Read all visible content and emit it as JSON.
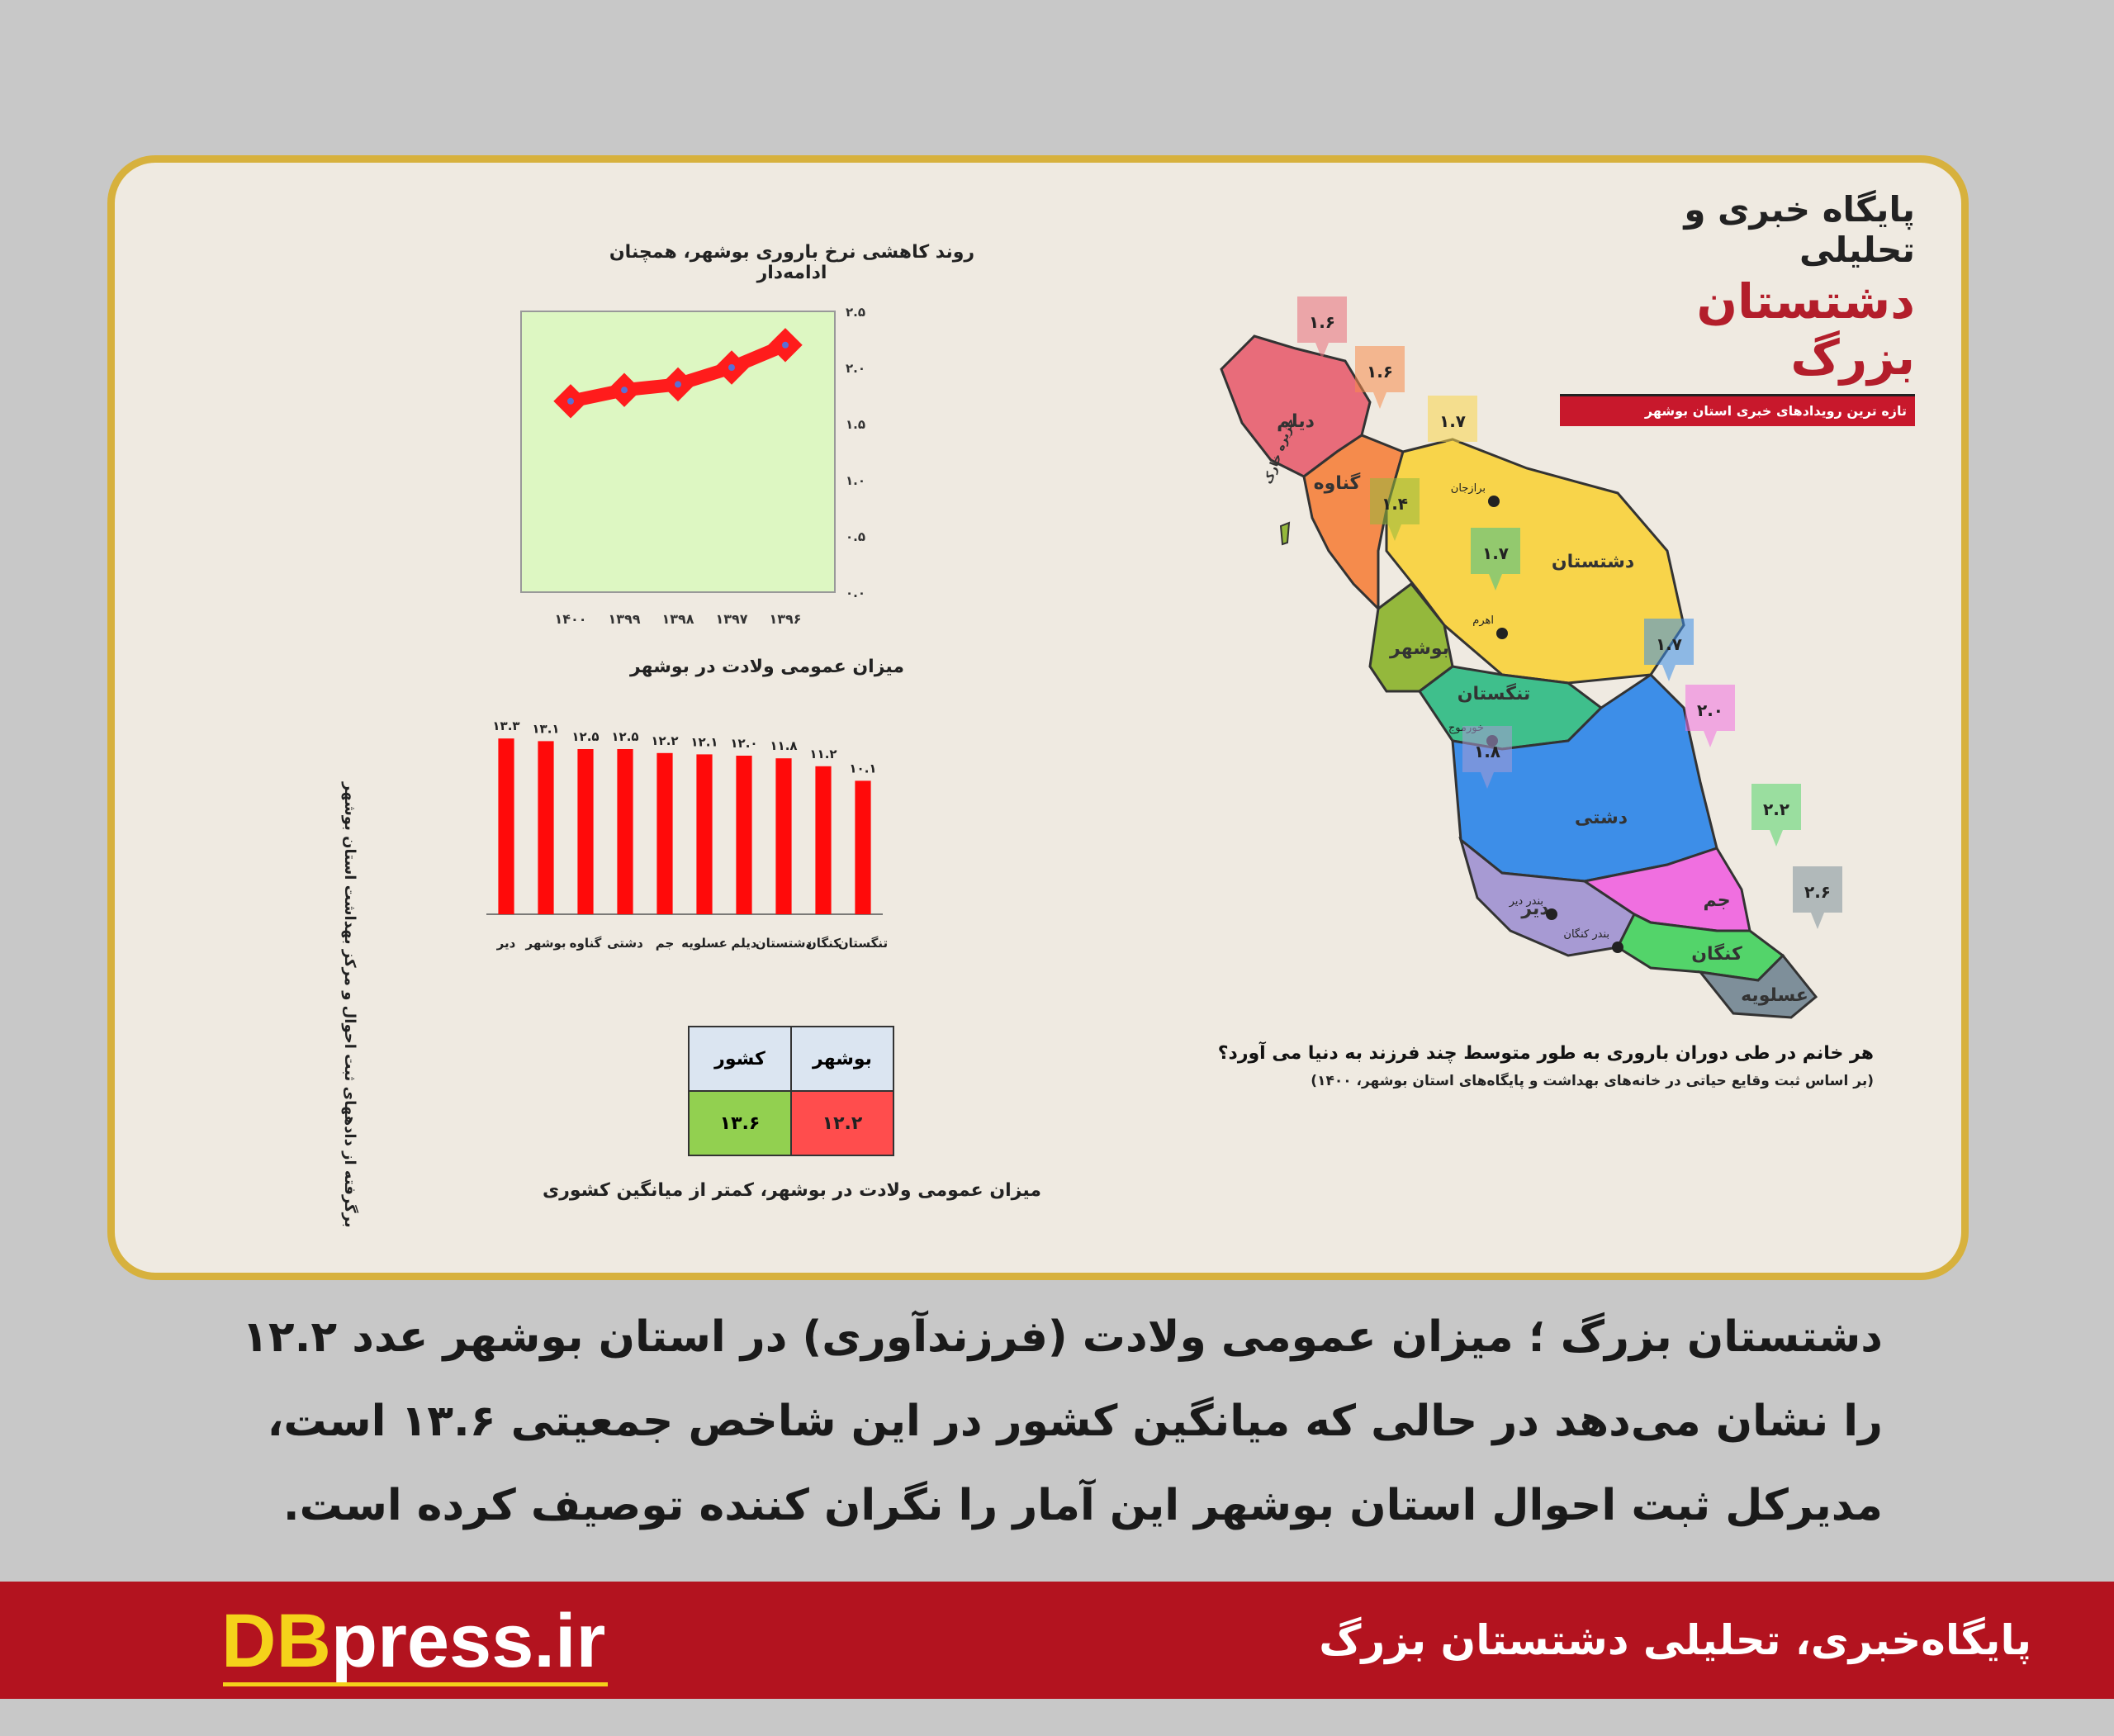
{
  "brand": {
    "line1": "پایگاه خبری و تحلیلی",
    "line2": "دشتستان بزرگ",
    "tagline": "تازه ترین رویدادهای خبری استان بوشهر"
  },
  "chart_data": [
    {
      "type": "line",
      "title": "روند کاهشی نرخ باروری بوشهر، همچنان ادامه‌دار",
      "categories": [
        "۱۴۰۰",
        "۱۳۹۹",
        "۱۳۹۸",
        "۱۳۹۷",
        "۱۳۹۶"
      ],
      "values": [
        1.7,
        1.8,
        1.85,
        2.0,
        2.2
      ],
      "yticks": [
        "۲.۵",
        "۲.۰",
        "۱.۵",
        "۱.۰",
        "۰.۵",
        "۰.۰"
      ],
      "ylim": [
        0,
        2.5
      ],
      "color": "#ff1c1c",
      "background": "#ddf7c2"
    },
    {
      "type": "bar",
      "title": "میزان عمومی ولادت در بوشهر",
      "categories": [
        "دیر",
        "بوشهر",
        "گناوه",
        "دشتی",
        "جم",
        "عسلویه",
        "دیلم",
        "دشتستان",
        "کنگان",
        "تنگستان"
      ],
      "values": [
        13.3,
        13.1,
        12.5,
        12.5,
        12.2,
        12.1,
        12.0,
        11.8,
        11.2,
        10.1
      ],
      "labels": [
        "۱۳.۳",
        "۱۳.۱",
        "۱۲.۵",
        "۱۲.۵",
        "۱۲.۲",
        "۱۲.۱",
        "۱۲.۰",
        "۱۱.۸",
        "۱۱.۲",
        "۱۰.۱"
      ],
      "ylim": [
        0,
        15
      ],
      "color": "#ff0a0a"
    },
    {
      "type": "table",
      "title": "میزان عمومی ولادت در بوشهر، کمتر از میانگین کشوری",
      "headers": [
        "کشور",
        "بوشهر"
      ],
      "values": [
        "۱۳.۶",
        "۱۲.۲"
      ],
      "colors": [
        "#92d050",
        "#ff4d4d"
      ]
    }
  ],
  "side_note": "برگرفته از دادههای ثبت احوال و مرکز بهداشت استان بوشهر",
  "map": {
    "caption": "هر خانم در طی دوران باروری به طور متوسط چند فرزند به دنیا می آورد؟",
    "subcaption": "(بر اساس ثبت وقایع حیاتی در خانه‌های بهداشت و پایگاه‌های استان بوشهر، ۱۴۰۰)",
    "island_label": "جزیره خارک",
    "regions": [
      {
        "name": "دیلم",
        "value": "۱.۶",
        "color": "#e86c7a"
      },
      {
        "name": "گناوه",
        "value": "۱.۶",
        "color": "#f58b4c"
      },
      {
        "name": "دشتستان",
        "value": "۱.۷",
        "color": "#f8d44a"
      },
      {
        "name": "بوشهر",
        "value": "۱.۴",
        "color": "#94b83c"
      },
      {
        "name": "تنگستان",
        "value": "۱.۷",
        "color": "#3fbf8c"
      },
      {
        "name": "دشتی",
        "value": "۱.۷",
        "color": "#3d8ee8"
      },
      {
        "name": "جم",
        "value": "۲.۰",
        "color": "#f06fe0"
      },
      {
        "name": "دیر",
        "value": "۱.۸",
        "color": "#a79ad3"
      },
      {
        "name": "کنگان",
        "value": "۲.۲",
        "color": "#53d46a"
      },
      {
        "name": "عسلویه",
        "value": "۲.۶",
        "color": "#7e8f9a"
      }
    ],
    "towns": {
      "dashtestan": "برازجان",
      "tangestan": "اهرم",
      "dashti": "خورموج",
      "dayyer": "بندر دیر",
      "kangan": "بندر کنگان"
    }
  },
  "body_text": [
    "دشتستان بزرگ ؛ میزان عمومی ولادت (فرزندآوری) در استان بوشهر عدد ۱۲.۲",
    "را نشان می‌دهد در حالی که میانگین کشور در این شاخص جمعیتی ۱۳.۶ است،",
    "مدیرکل ثبت احوال استان بوشهر این آمار را نگران کننده توصیف کرده است."
  ],
  "footer": {
    "site_part1": "DB",
    "site_part2": "press.ir",
    "name": "پایگاه‌خبری، تحلیلی دشتستان بزرگ"
  }
}
